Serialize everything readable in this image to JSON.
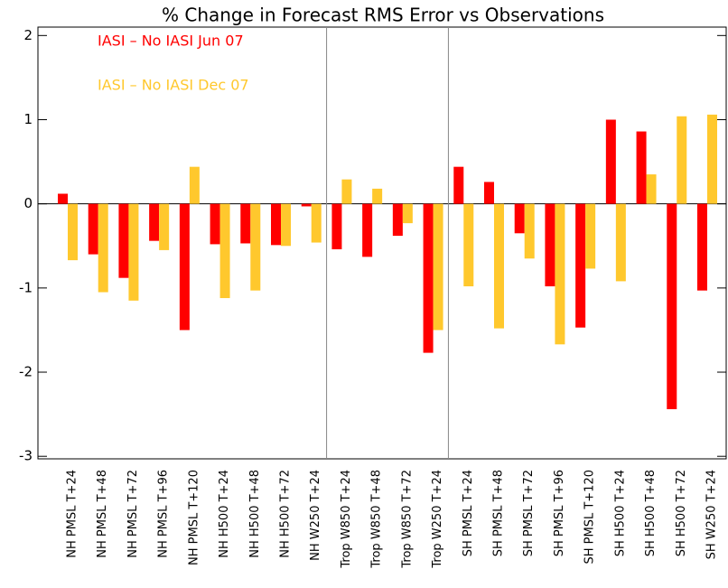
{
  "chart_data": {
    "type": "bar",
    "title": "% Change in Forecast RMS Error vs Observations",
    "categories": [
      "NH PMSL T+24",
      "NH PMSL T+48",
      "NH PMSL T+72",
      "NH PMSL T+96",
      "NH PMSL T+120",
      "NH H500 T+24",
      "NH H500 T+48",
      "NH H500 T+72",
      "NH W250 T+24",
      "Trop W850 T+24",
      "Trop W850 T+48",
      "Trop W850 T+72",
      "Trop W250 T+24",
      "SH PMSL T+24",
      "SH PMSL T+48",
      "SH PMSL T+72",
      "SH PMSL T+96",
      "SH PMSL T+120",
      "SH H500 T+24",
      "SH H500 T+48",
      "SH H500 T+72",
      "SH W250 T+24"
    ],
    "series": [
      {
        "name": "IASI – No IASI Jun 07",
        "color": "#ff0000",
        "values": [
          0.12,
          -0.6,
          -0.88,
          -0.44,
          -1.5,
          -0.48,
          -0.47,
          -0.49,
          -0.03,
          -0.54,
          -0.63,
          -0.38,
          -1.77,
          0.44,
          0.26,
          -0.35,
          -0.98,
          -1.47,
          1.0,
          0.86,
          -2.44,
          -1.03
        ]
      },
      {
        "name": "IASI – No IASI Dec 07",
        "color": "#ffc82d",
        "values": [
          -0.67,
          -1.05,
          -1.15,
          -0.55,
          0.44,
          -1.12,
          -1.03,
          -0.5,
          -0.46,
          0.29,
          0.18,
          -0.23,
          -1.5,
          -0.98,
          -1.48,
          -0.65,
          -1.67,
          -0.77,
          -0.92,
          0.35,
          1.04,
          1.06
        ]
      }
    ],
    "ylim": [
      -3.03,
      2.1
    ],
    "yticks": [
      -3,
      -2,
      -1,
      0,
      1,
      2
    ]
  }
}
